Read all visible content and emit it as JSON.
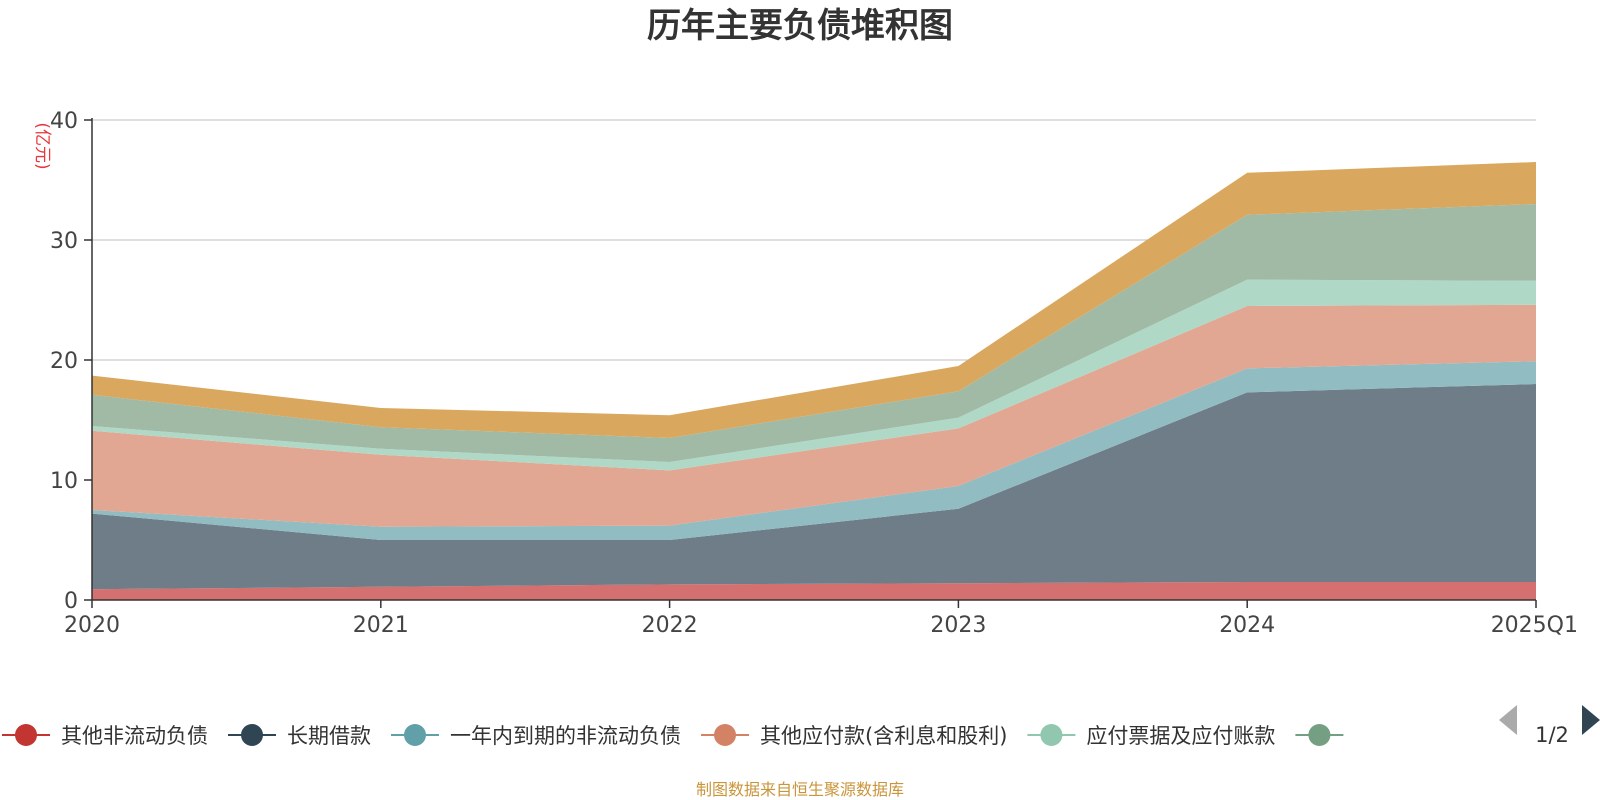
{
  "chart_data": {
    "type": "area",
    "stacked": true,
    "title": "历年主要负债堆积图",
    "unit_label": "(亿元)",
    "source_note": "制图数据来自恒生聚源数据库",
    "x": [
      "2020",
      "2021",
      "2022",
      "2023",
      "2024",
      "2025Q1"
    ],
    "ylim": [
      0,
      40
    ],
    "yticks": [
      0,
      10,
      20,
      30,
      40
    ],
    "grid": true,
    "legend_position": "bottom",
    "legend_page": "1/2",
    "series": [
      {
        "name": "其他非流动负债",
        "color": "#c23531",
        "area_color": "#d47070",
        "values": [
          0.9,
          1.1,
          1.3,
          1.4,
          1.5,
          1.5
        ]
      },
      {
        "name": "长期借款",
        "color": "#2f4554",
        "area_color": "#6e7d87",
        "values": [
          6.3,
          3.9,
          3.7,
          6.2,
          15.8,
          16.5
        ]
      },
      {
        "name": "一年内到期的非流动负债",
        "color": "#61a0a8",
        "area_color": "#90bcc2",
        "values": [
          0.3,
          1.1,
          1.2,
          1.9,
          2.0,
          1.9
        ]
      },
      {
        "name": "其他应付款(含利息和股利)",
        "color": "#d48265",
        "area_color": "#e2a793",
        "values": [
          6.6,
          6.0,
          4.6,
          4.8,
          5.2,
          4.7
        ]
      },
      {
        "name": "应付票据及应付账款",
        "color": "#91c7ae",
        "area_color": "#b0d8c6",
        "values": [
          0.4,
          0.5,
          0.7,
          0.9,
          2.2,
          2.0
        ]
      },
      {
        "name": "",
        "color": "#749f83",
        "area_color": "#a0baa6",
        "values": [
          2.6,
          1.8,
          2.0,
          2.2,
          5.4,
          6.4
        ]
      },
      {
        "name": "",
        "color": "#ca8622",
        "area_color": "#d9a85e",
        "values": [
          1.6,
          1.6,
          1.9,
          2.1,
          3.5,
          3.5
        ]
      }
    ]
  }
}
